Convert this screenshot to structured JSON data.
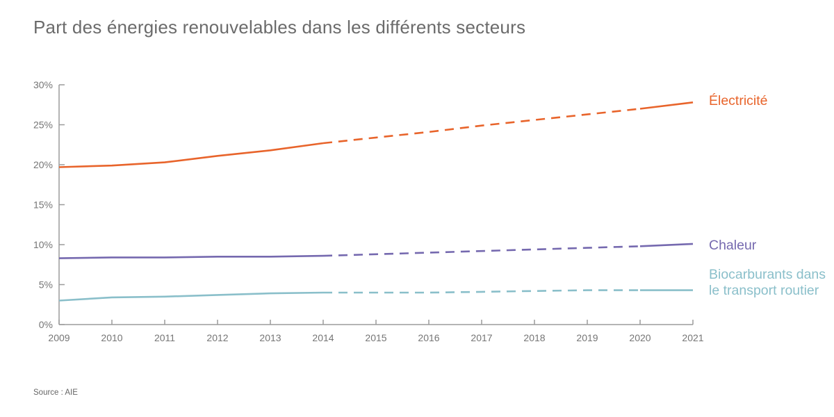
{
  "page": {
    "title": "Part des énergies renouvelables dans les différents secteurs",
    "source": "Source : AIE"
  },
  "colors": {
    "electricity": "#e8642b",
    "heat": "#7569af",
    "biofuels": "#8abfca",
    "title_text": "#6b6b6b",
    "axis_line": "#9b9b9b",
    "axis_text": "#757575",
    "source_text": "#666666"
  },
  "chart_data": {
    "type": "line",
    "title": "Part des énergies renouvelables dans les différents secteurs",
    "xlabel": "",
    "ylabel": "",
    "x": [
      2009,
      2010,
      2011,
      2012,
      2013,
      2014,
      2015,
      2016,
      2017,
      2018,
      2019,
      2020,
      2021
    ],
    "x_tick_labels": [
      "2009",
      "2010",
      "2011",
      "2012",
      "2013",
      "2014",
      "2015",
      "2016",
      "2017",
      "2018",
      "2019",
      "2020",
      "2021"
    ],
    "ylim": [
      0,
      30
    ],
    "y_tick_step": 5,
    "y_tick_labels": [
      "0%",
      "5%",
      "10%",
      "15%",
      "20%",
      "25%",
      "30%"
    ],
    "grid": false,
    "legend_position": "right-end-of-lines",
    "segments": [
      {
        "from_year": 2009,
        "to_year": 2014,
        "style": "solid"
      },
      {
        "from_year": 2014,
        "to_year": 2020,
        "style": "dashed"
      },
      {
        "from_year": 2020,
        "to_year": 2021,
        "style": "solid"
      }
    ],
    "series": [
      {
        "name": "Électricité",
        "color": "#e8642b",
        "values": [
          19.7,
          19.9,
          20.3,
          21.1,
          21.8,
          22.7,
          23.4,
          24.1,
          24.9,
          25.6,
          26.3,
          27.0,
          27.8
        ]
      },
      {
        "name": "Chaleur",
        "color": "#7569af",
        "values": [
          8.3,
          8.4,
          8.4,
          8.5,
          8.5,
          8.6,
          8.8,
          9.0,
          9.2,
          9.4,
          9.6,
          9.8,
          10.1
        ]
      },
      {
        "name": "Biocarburants dans le transport routier",
        "color": "#8abfca",
        "values": [
          3.0,
          3.4,
          3.5,
          3.7,
          3.9,
          4.0,
          4.0,
          4.0,
          4.1,
          4.2,
          4.3,
          4.3,
          4.3
        ]
      }
    ]
  }
}
